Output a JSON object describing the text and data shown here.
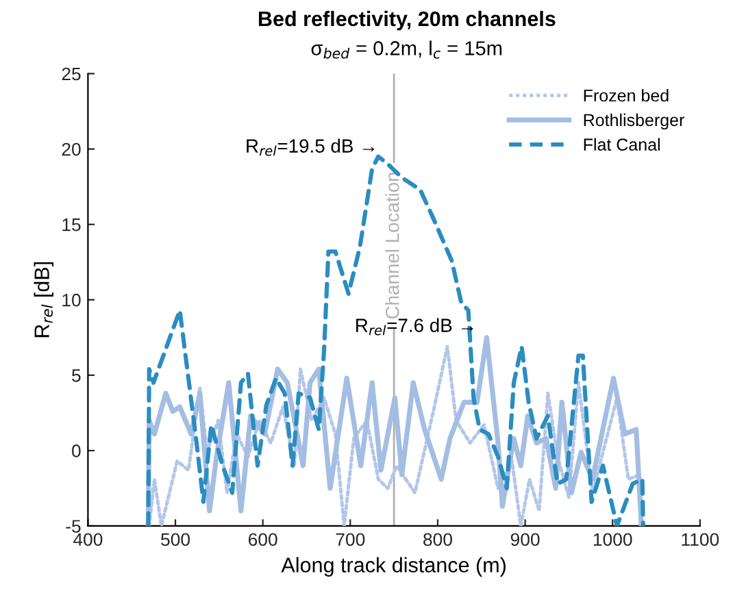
{
  "chart_data": {
    "type": "line",
    "title": "Bed reflectivity, 20m channels",
    "subtitle": "σ$_{bed}$ = 0.2m, l$_{c}$ = 15m",
    "xlabel": "Along track distance (m)",
    "ylabel": "R$_{rel}$ [dB]",
    "xlim": [
      400,
      1100
    ],
    "ylim": [
      -5,
      25
    ],
    "xticks": [
      400,
      500,
      600,
      700,
      800,
      900,
      1000,
      1100
    ],
    "yticks": [
      -5,
      0,
      5,
      10,
      15,
      20,
      25
    ],
    "grid": false,
    "legend": "top right",
    "series": [
      {
        "name": "Frozen bed",
        "color": "#b3c6ea",
        "line_style": "dotted",
        "x": [
          470,
          476,
          484,
          502,
          515,
          528,
          536,
          549,
          559,
          570,
          583,
          596,
          609,
          623,
          636,
          643,
          656,
          670,
          683,
          693,
          704,
          719,
          732,
          743,
          753,
          774,
          795,
          811,
          821,
          837,
          853,
          869,
          885,
          895,
          905,
          916,
          926,
          937,
          950,
          961,
          977,
          989,
          1005,
          1018,
          1031,
          1033
        ],
        "values": [
          -5,
          -1.9,
          -5,
          -0.7,
          -1.3,
          4.2,
          -0.1,
          2,
          -2.8,
          1.1,
          -0.4,
          2,
          0.5,
          2.9,
          -1,
          5.4,
          2,
          3.5,
          1.1,
          -5,
          0.8,
          2,
          -1.9,
          -2.5,
          -1,
          -2.8,
          2.6,
          6.9,
          2,
          0.5,
          1.7,
          -2.5,
          -0.7,
          -5,
          -1.9,
          -4,
          3.8,
          -0.4,
          -3.1,
          4.5,
          -2.8,
          -0.1,
          3.5,
          -1.9,
          -1.6,
          -5
        ]
      },
      {
        "name": "Rothlisberger",
        "color": "#a4bde2",
        "line_style": "solid",
        "x": [
          469,
          470,
          476,
          489,
          497,
          505,
          518,
          528,
          539,
          547,
          561,
          575,
          586,
          602,
          617,
          628,
          646,
          654,
          664,
          677,
          696,
          712,
          725,
          735,
          751,
          759,
          772,
          785,
          804,
          814,
          830,
          845,
          856,
          869,
          874,
          887,
          895,
          903,
          913,
          924,
          935,
          942,
          953,
          964,
          977,
          1001,
          1014,
          1027,
          1033
        ],
        "values": [
          -5,
          2.0,
          1.1,
          3.8,
          2.6,
          2.9,
          1.1,
          3.8,
          -4.0,
          -0.4,
          4.5,
          -4.0,
          2.3,
          1.1,
          5.4,
          4.5,
          -1,
          4.5,
          5.4,
          -2.5,
          4.8,
          -1,
          4.5,
          -1.3,
          3.5,
          -1.6,
          4.5,
          1.4,
          -1.9,
          0.8,
          3.2,
          3.2,
          7.5,
          0.5,
          -3.7,
          0.8,
          -1,
          2.3,
          0.5,
          0.8,
          -2.5,
          3.2,
          -2.8,
          -0.1,
          -1.9,
          4.8,
          1.1,
          1.4,
          -5
        ]
      },
      {
        "name": "Flat Canal",
        "color": "#2a8dc0",
        "line_style": "dashed",
        "x": [
          469,
          470,
          475,
          505,
          523,
          532,
          541,
          554,
          565,
          575,
          583,
          594,
          604,
          615,
          625,
          634,
          641,
          654,
          664,
          670,
          675,
          683,
          698,
          711,
          725,
          732,
          743,
          759,
          780,
          795,
          816,
          827,
          835,
          841,
          848,
          858,
          869,
          879,
          887,
          896,
          904,
          913,
          926,
          937,
          947,
          961,
          966,
          976,
          989,
          1005,
          1023,
          1034,
          1035
        ],
        "values": [
          -5,
          5.4,
          4.5,
          9.3,
          1.1,
          -3.4,
          1.7,
          -1,
          -2.8,
          4.5,
          5.1,
          -1,
          3,
          4.8,
          3.8,
          -1,
          3.8,
          3.5,
          1.4,
          6.6,
          13.2,
          13.2,
          10.4,
          13.5,
          18.7,
          19.5,
          19,
          18.1,
          17.3,
          15.4,
          12.6,
          9.8,
          9.3,
          3.5,
          1.4,
          1.1,
          -0.4,
          -2.5,
          4.5,
          6.9,
          3.2,
          0.8,
          2.3,
          -2.2,
          -1.9,
          6.3,
          6.3,
          -3.4,
          -1,
          -5,
          -2.2,
          -1.9,
          -5
        ]
      }
    ],
    "ref_lines": [
      {
        "axis": "x",
        "value": 750,
        "label": "Channel Location",
        "color": "#b0b0b0"
      }
    ],
    "annotations": [
      {
        "text": "R$_{rel}$=19.5 dB →",
        "x": 732,
        "y": 19.5
      },
      {
        "text": "R$_{rel}$=7.6 dB →",
        "x": 845,
        "y": 7.6
      }
    ]
  }
}
